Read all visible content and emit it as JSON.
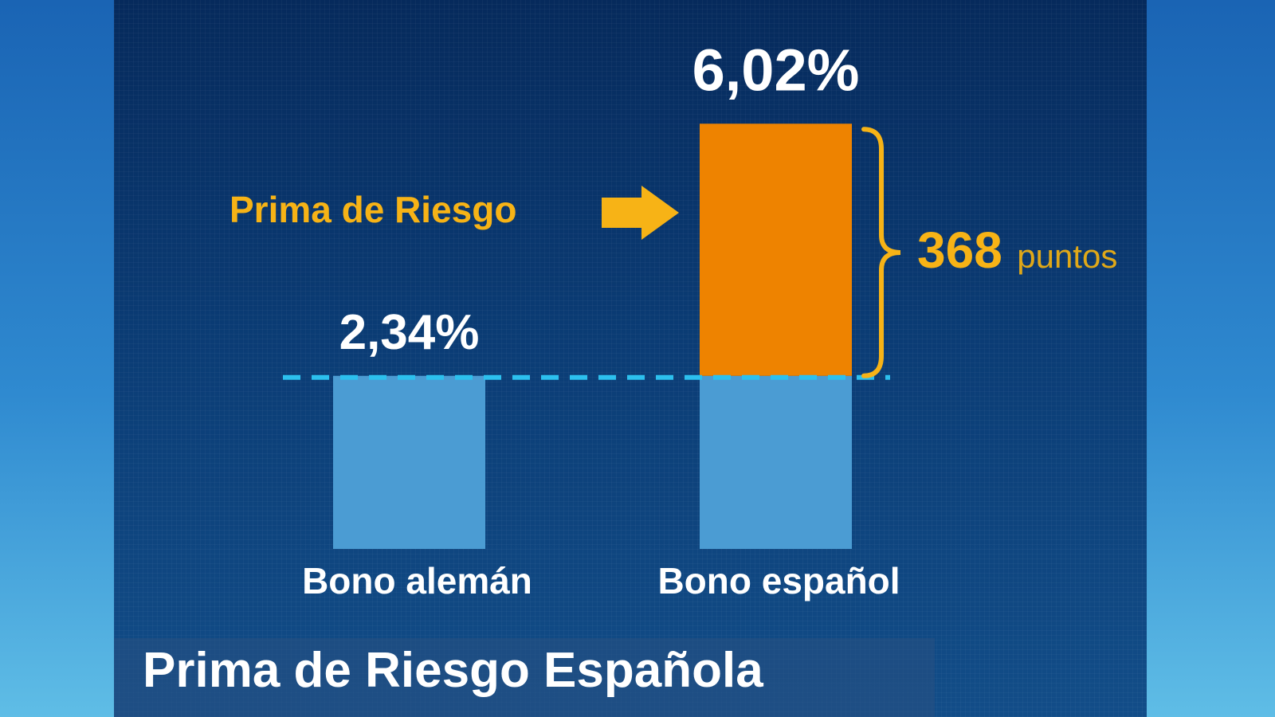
{
  "chart_data": {
    "type": "bar",
    "title": "Prima de Riesgo Española",
    "categories": [
      "Bono alemán",
      "Bono español"
    ],
    "values": [
      2.34,
      6.02
    ],
    "value_labels": [
      "2,34%",
      "6,02%"
    ],
    "spread": {
      "label": "Prima de Riesgo",
      "value": "368",
      "unit": "puntos"
    },
    "colors": {
      "base_bar": "#4b9cd3",
      "spread_bar": "#ee8300",
      "accent": "#f7b316",
      "reference_line": "#2cc0ee"
    },
    "grid": false
  }
}
